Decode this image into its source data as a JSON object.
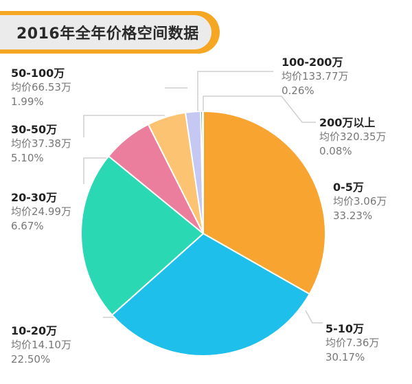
{
  "chart_data": {
    "type": "pie",
    "title": "2016年全年价格空间数据",
    "slices": [
      {
        "name": "0-5万",
        "avg_label": "均价3.06万",
        "percent_label": "33.23%",
        "value": 33.23,
        "color": "#f7a530"
      },
      {
        "name": "5-10万",
        "avg_label": "均价7.36万",
        "percent_label": "30.17%",
        "value": 30.17,
        "color": "#1fbfeb"
      },
      {
        "name": "10-20万",
        "avg_label": "均价14.10万",
        "percent_label": "22.50%",
        "value": 22.5,
        "color": "#2ad8b3"
      },
      {
        "name": "20-30万",
        "avg_label": "均价24.99万",
        "percent_label": "6.67%",
        "value": 6.67,
        "color": "#ea7e9c"
      },
      {
        "name": "30-50万",
        "avg_label": "均价37.38万",
        "percent_label": "5.10%",
        "value": 5.1,
        "color": "#fbc372"
      },
      {
        "name": "50-100万",
        "avg_label": "均价66.53万",
        "percent_label": "1.99%",
        "value": 1.99,
        "color": "#c5c8f3"
      },
      {
        "name": "100-200万",
        "avg_label": "均价133.77万",
        "percent_label": "0.26%",
        "value": 0.26,
        "color": "#4a9a5c"
      },
      {
        "name": "200万以上",
        "avg_label": "均价320.35万",
        "percent_label": "0.08%",
        "value": 0.08,
        "color": "#2e6b3c"
      }
    ]
  }
}
